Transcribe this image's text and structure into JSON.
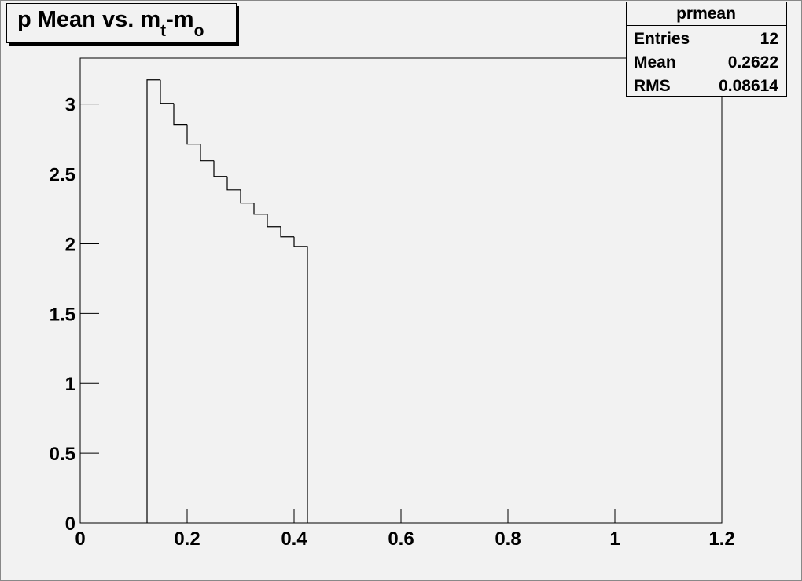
{
  "chart_data": {
    "type": "histogram",
    "title": [
      "p Mean vs. m",
      "t",
      "-m",
      "o"
    ],
    "bins": [
      0.125,
      0.15,
      0.175,
      0.2,
      0.225,
      0.25,
      0.275,
      0.3,
      0.325,
      0.35,
      0.375,
      0.4,
      0.425
    ],
    "values": [
      3.174,
      3.005,
      2.854,
      2.713,
      2.595,
      2.482,
      2.386,
      2.291,
      2.212,
      2.122,
      2.049,
      1.981
    ],
    "color": "#000000",
    "xlim": [
      0,
      1.2
    ],
    "xticks": [
      0,
      0.2,
      0.4,
      0.6,
      0.8,
      1,
      1.2
    ],
    "ylim": [
      0,
      3.33
    ],
    "yticks": [
      0,
      0.5,
      1,
      1.5,
      2,
      2.5,
      3
    ],
    "stats": {
      "name": "prmean",
      "rows": [
        [
          "Entries",
          12
        ],
        [
          "Mean",
          0.2622
        ],
        [
          "RMS",
          0.08614
        ]
      ]
    }
  }
}
